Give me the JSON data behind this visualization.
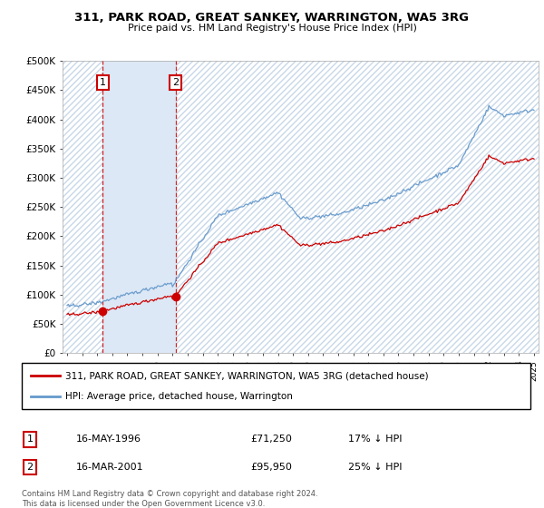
{
  "title": "311, PARK ROAD, GREAT SANKEY, WARRINGTON, WA5 3RG",
  "subtitle": "Price paid vs. HM Land Registry's House Price Index (HPI)",
  "ylim": [
    0,
    500000
  ],
  "yticks": [
    0,
    50000,
    100000,
    150000,
    200000,
    250000,
    300000,
    350000,
    400000,
    450000,
    500000
  ],
  "ytick_labels": [
    "£0",
    "£50K",
    "£100K",
    "£150K",
    "£200K",
    "£250K",
    "£300K",
    "£350K",
    "£400K",
    "£450K",
    "£500K"
  ],
  "sale1_date": 1996.37,
  "sale1_price": 71250,
  "sale2_date": 2001.21,
  "sale2_price": 95950,
  "legend_red_label": "311, PARK ROAD, GREAT SANKEY, WARRINGTON, WA5 3RG (detached house)",
  "legend_blue_label": "HPI: Average price, detached house, Warrington",
  "red_line_color": "#cc0000",
  "blue_line_color": "#6699cc",
  "shade_color": "#dce8f5",
  "grid_color": "#cccccc",
  "xlim_start": 1993.7,
  "xlim_end": 2025.3,
  "hpi_years": [
    1994.0,
    1994.08,
    1994.17,
    1994.25,
    1994.33,
    1994.42,
    1994.5,
    1994.58,
    1994.67,
    1994.75,
    1994.83,
    1994.92,
    1995.0,
    1995.08,
    1995.17,
    1995.25,
    1995.33,
    1995.42,
    1995.5,
    1995.58,
    1995.67,
    1995.75,
    1995.83,
    1995.92,
    1996.0,
    1996.08,
    1996.17,
    1996.25,
    1996.33,
    1996.42,
    1996.5,
    1996.58,
    1996.67,
    1996.75,
    1996.83,
    1996.92,
    1997.0,
    1997.08,
    1997.17,
    1997.25,
    1997.33,
    1997.42,
    1997.5,
    1997.58,
    1997.67,
    1997.75,
    1997.83,
    1997.92,
    1998.0,
    1998.08,
    1998.17,
    1998.25,
    1998.33,
    1998.42,
    1998.5,
    1998.58,
    1998.67,
    1998.75,
    1998.83,
    1998.92,
    1999.0,
    1999.08,
    1999.17,
    1999.25,
    1999.33,
    1999.42,
    1999.5,
    1999.58,
    1999.67,
    1999.75,
    1999.83,
    1999.92,
    2000.0,
    2000.08,
    2000.17,
    2000.25,
    2000.33,
    2000.42,
    2000.5,
    2000.58,
    2000.67,
    2000.75,
    2000.83,
    2000.92,
    2001.0,
    2001.08,
    2001.17,
    2001.25,
    2001.33,
    2001.42,
    2001.5,
    2001.58,
    2001.67,
    2001.75,
    2001.83,
    2001.92,
    2002.0,
    2002.08,
    2002.17,
    2002.25,
    2002.33,
    2002.42,
    2002.5,
    2002.58,
    2002.67,
    2002.75,
    2002.83,
    2002.92,
    2003.0,
    2003.08,
    2003.17,
    2003.25,
    2003.33,
    2003.42,
    2003.5,
    2003.58,
    2003.67,
    2003.75,
    2003.83,
    2003.92,
    2004.0,
    2004.08,
    2004.17,
    2004.25,
    2004.33,
    2004.42,
    2004.5,
    2004.58,
    2004.67,
    2004.75,
    2004.83,
    2004.92,
    2005.0,
    2005.08,
    2005.17,
    2005.25,
    2005.33,
    2005.42,
    2005.5,
    2005.58,
    2005.67,
    2005.75,
    2005.83,
    2005.92,
    2006.0,
    2006.08,
    2006.17,
    2006.25,
    2006.33,
    2006.42,
    2006.5,
    2006.58,
    2006.67,
    2006.75,
    2006.83,
    2006.92,
    2007.0,
    2007.08,
    2007.17,
    2007.25,
    2007.33,
    2007.42,
    2007.5,
    2007.58,
    2007.67,
    2007.75,
    2007.83,
    2007.92,
    2008.0,
    2008.08,
    2008.17,
    2008.25,
    2008.33,
    2008.42,
    2008.5,
    2008.58,
    2008.67,
    2008.75,
    2008.83,
    2008.92,
    2009.0,
    2009.08,
    2009.17,
    2009.25,
    2009.33,
    2009.42,
    2009.5,
    2009.58,
    2009.67,
    2009.75,
    2009.83,
    2009.92,
    2010.0,
    2010.08,
    2010.17,
    2010.25,
    2010.33,
    2010.42,
    2010.5,
    2010.58,
    2010.67,
    2010.75,
    2010.83,
    2010.92,
    2011.0,
    2011.08,
    2011.17,
    2011.25,
    2011.33,
    2011.42,
    2011.5,
    2011.58,
    2011.67,
    2011.75,
    2011.83,
    2011.92,
    2012.0,
    2012.08,
    2012.17,
    2012.25,
    2012.33,
    2012.42,
    2012.5,
    2012.58,
    2012.67,
    2012.75,
    2012.83,
    2012.92,
    2013.0,
    2013.08,
    2013.17,
    2013.25,
    2013.33,
    2013.42,
    2013.5,
    2013.58,
    2013.67,
    2013.75,
    2013.83,
    2013.92,
    2014.0,
    2014.08,
    2014.17,
    2014.25,
    2014.33,
    2014.42,
    2014.5,
    2014.58,
    2014.67,
    2014.75,
    2014.83,
    2014.92,
    2015.0,
    2015.08,
    2015.17,
    2015.25,
    2015.33,
    2015.42,
    2015.5,
    2015.58,
    2015.67,
    2015.75,
    2015.83,
    2015.92,
    2016.0,
    2016.08,
    2016.17,
    2016.25,
    2016.33,
    2016.42,
    2016.5,
    2016.58,
    2016.67,
    2016.75,
    2016.83,
    2016.92,
    2017.0,
    2017.08,
    2017.17,
    2017.25,
    2017.33,
    2017.42,
    2017.5,
    2017.58,
    2017.67,
    2017.75,
    2017.83,
    2017.92,
    2018.0,
    2018.08,
    2018.17,
    2018.25,
    2018.33,
    2018.42,
    2018.5,
    2018.58,
    2018.67,
    2018.75,
    2018.83,
    2018.92,
    2019.0,
    2019.08,
    2019.17,
    2019.25,
    2019.33,
    2019.42,
    2019.5,
    2019.58,
    2019.67,
    2019.75,
    2019.83,
    2019.92,
    2020.0,
    2020.08,
    2020.17,
    2020.25,
    2020.33,
    2020.42,
    2020.5,
    2020.58,
    2020.67,
    2020.75,
    2020.83,
    2020.92,
    2021.0,
    2021.08,
    2021.17,
    2021.25,
    2021.33,
    2021.42,
    2021.5,
    2021.58,
    2021.67,
    2021.75,
    2021.83,
    2021.92,
    2022.0,
    2022.08,
    2022.17,
    2022.25,
    2022.33,
    2022.42,
    2022.5,
    2022.58,
    2022.67,
    2022.75,
    2022.83,
    2022.92,
    2023.0,
    2023.08,
    2023.17,
    2023.25,
    2023.33,
    2023.42,
    2023.5,
    2023.58,
    2023.67,
    2023.75,
    2023.83,
    2023.92,
    2024.0,
    2024.08,
    2024.17,
    2024.25,
    2024.33,
    2024.42,
    2024.5,
    2024.58,
    2024.67,
    2024.75,
    2024.83,
    2024.92,
    2025.0
  ],
  "footer": "Contains HM Land Registry data © Crown copyright and database right 2024.\nThis data is licensed under the Open Government Licence v3.0."
}
